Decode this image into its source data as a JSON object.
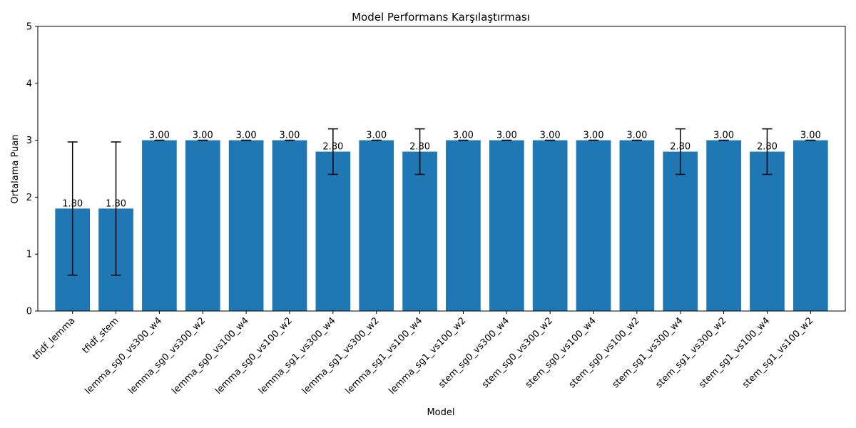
{
  "chart_data": {
    "type": "bar",
    "title": "Model Performans Karşılaştırması",
    "xlabel": "Model",
    "ylabel": "Ortalama Puan",
    "ylim": [
      0,
      5
    ],
    "yticks": [
      "0",
      "1",
      "2",
      "3",
      "4",
      "5"
    ],
    "grid": false,
    "categories": [
      "tfidf_lemma",
      "tfidf_stem",
      "lemma_sg0_vs300_w4",
      "lemma_sg0_vs300_w2",
      "lemma_sg0_vs100_w4",
      "lemma_sg0_vs100_w2",
      "lemma_sg1_vs300_w4",
      "lemma_sg1_vs300_w2",
      "lemma_sg1_vs100_w4",
      "lemma_sg1_vs100_w2",
      "stem_sg0_vs300_w4",
      "stem_sg0_vs300_w2",
      "stem_sg0_vs100_w4",
      "stem_sg0_vs100_w2",
      "stem_sg1_vs300_w4",
      "stem_sg1_vs300_w2",
      "stem_sg1_vs100_w4",
      "stem_sg1_vs100_w2"
    ],
    "values": [
      1.8,
      1.8,
      3.0,
      3.0,
      3.0,
      3.0,
      2.8,
      3.0,
      2.8,
      3.0,
      3.0,
      3.0,
      3.0,
      3.0,
      2.8,
      3.0,
      2.8,
      3.0
    ],
    "error": [
      1.17,
      1.17,
      0,
      0,
      0,
      0,
      0.4,
      0,
      0.4,
      0,
      0,
      0,
      0,
      0,
      0.4,
      0,
      0.4,
      0
    ],
    "data_labels": [
      "1.80",
      "1.80",
      "3.00",
      "3.00",
      "3.00",
      "3.00",
      "2.80",
      "3.00",
      "2.80",
      "3.00",
      "3.00",
      "3.00",
      "3.00",
      "3.00",
      "2.80",
      "3.00",
      "2.80",
      "3.00"
    ],
    "bar_color": "#1f77b4",
    "error_color": "#000000"
  }
}
